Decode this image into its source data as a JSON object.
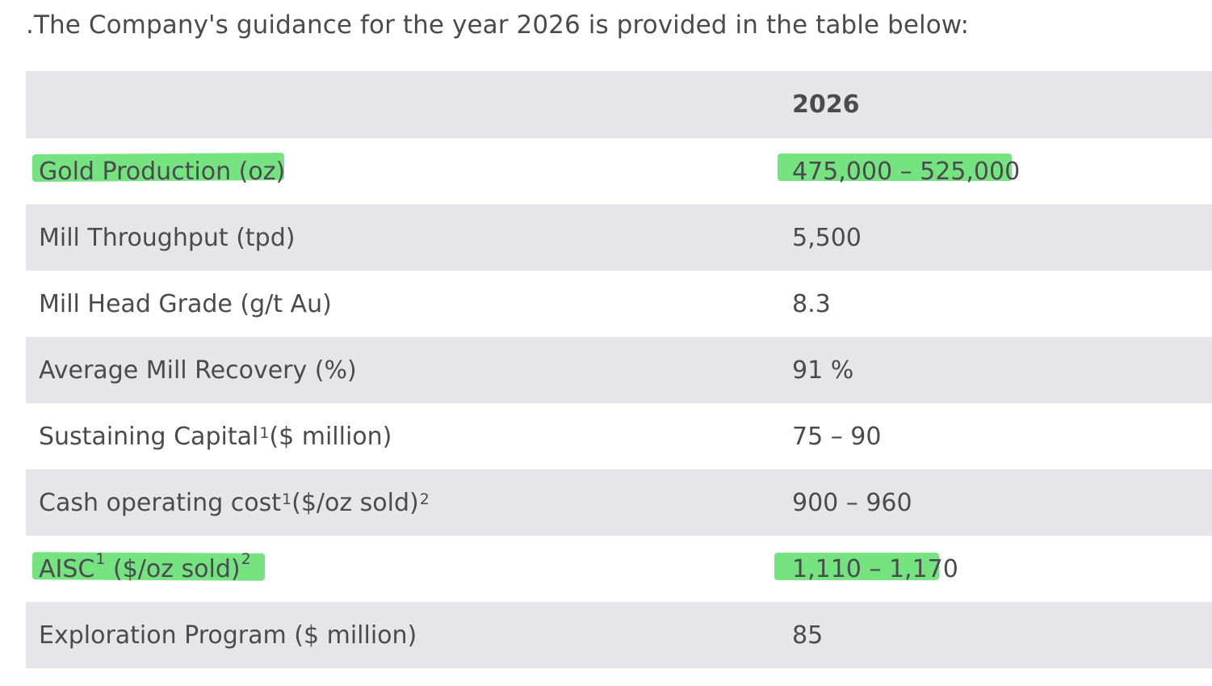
{
  "intro": ".The Company's guidance for the year 2026 is provided in the table below:",
  "table": {
    "header": {
      "label": "",
      "value": "2026"
    },
    "rows": [
      {
        "label": "Gold Production (oz)",
        "value": "475,000 – 525,000",
        "highlighted": true
      },
      {
        "label": "Mill Throughput (tpd)",
        "value": "5,500"
      },
      {
        "label": "Mill Head Grade (g/t Au)",
        "value": "8.3"
      },
      {
        "label": "Average Mill Recovery (%)",
        "value": "91 %"
      },
      {
        "label_pre": "Sustaining Capital",
        "label_sup1": "1",
        "label_post": " ($ million)",
        "value": "75 – 90"
      },
      {
        "label_pre": "Cash operating cost",
        "label_sup1": "1",
        "label_post": " ($/oz sold)",
        "label_sup2": "2",
        "value": "900 – 960"
      },
      {
        "label_pre": "AISC",
        "label_sup1": "1",
        "label_post": " ($/oz sold)",
        "label_sup2": "2",
        "value": "1,110 – 1,170",
        "highlighted": true
      },
      {
        "label": "Exploration Program ($ million)",
        "value": "85"
      }
    ]
  },
  "colors": {
    "highlight": "#6fe17a",
    "row_shade": "#e6e6ea",
    "text": "#4a4a4f"
  }
}
